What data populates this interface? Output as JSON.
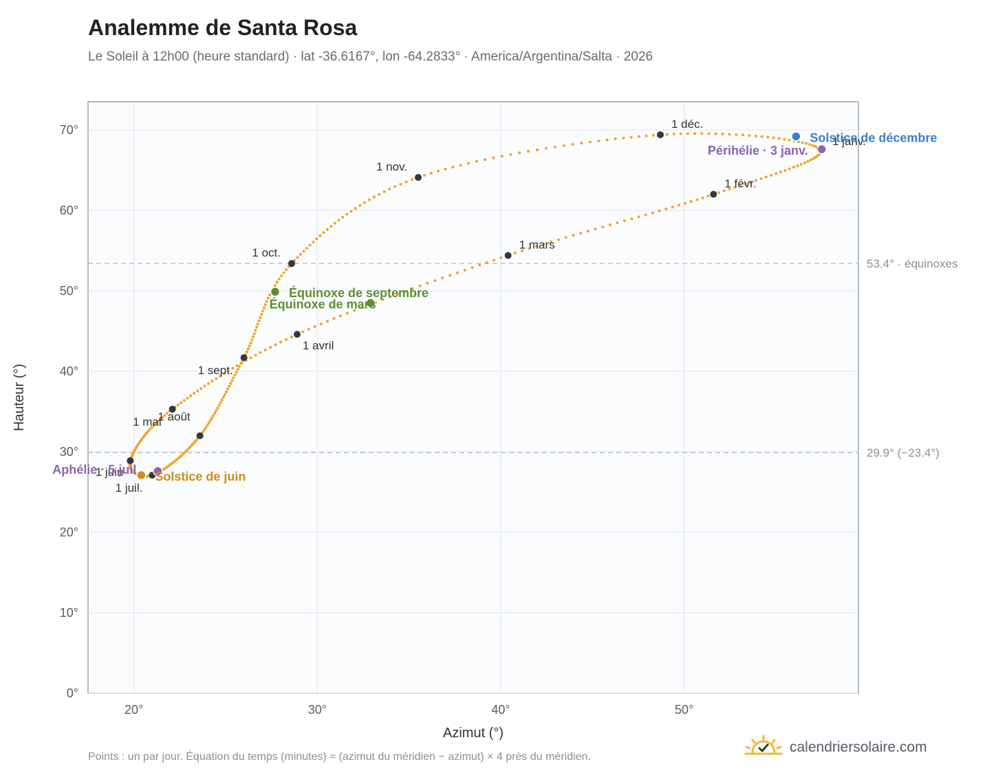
{
  "header": {
    "title": "Analemme de Santa Rosa",
    "subtitle": "Le Soleil à 12h00 (heure standard) · lat -36.6167°, lon -64.2833° · America/Argentina/Salta · 2026"
  },
  "footer": {
    "note": "Points : un par jour. Équation du temps (minutes) ≈ (azimut du méridien − azimut) × 4 près du méridien.",
    "brand": "calendriersolaire.com",
    "brand_icon": "sun-check-icon"
  },
  "chart_data": {
    "type": "scatter",
    "xlabel": "Azimut (°)",
    "ylabel": "Hauteur (°)",
    "xlim": [
      17.5,
      59.5
    ],
    "ylim": [
      0,
      73.5
    ],
    "xticks": [
      20,
      30,
      40,
      50
    ],
    "yticks": [
      0,
      10,
      20,
      30,
      40,
      50,
      60,
      70
    ],
    "tick_suffix": "°",
    "grid": true,
    "colors": {
      "curve": "#f2a427",
      "month_marker": "#333840",
      "equinox": "#5a8f33",
      "june_solstice": "#d18b1a",
      "december_solstice": "#3f7fc6",
      "apsis": "#8b63b3",
      "reference": "#b8c2cc"
    },
    "reference_lines": [
      {
        "y": 53.4,
        "label": "53.4° · équinoxes"
      },
      {
        "y": 29.9,
        "label": "29.9° (−23.4°)"
      }
    ],
    "month_markers": [
      {
        "label": "1 janv.",
        "x": 57.4,
        "y": 67.6
      },
      {
        "label": "1 févr.",
        "x": 51.6,
        "y": 62.0
      },
      {
        "label": "1 mars",
        "x": 40.4,
        "y": 54.4
      },
      {
        "label": "1 avril",
        "x": 28.9,
        "y": 44.6
      },
      {
        "label": "1 mai",
        "x": 22.1,
        "y": 35.3
      },
      {
        "label": "1 juin",
        "x": 19.8,
        "y": 28.9
      },
      {
        "label": "1 juil.",
        "x": 21.0,
        "y": 27.1
      },
      {
        "label": "1 août",
        "x": 23.6,
        "y": 32.0
      },
      {
        "label": "1 sept.",
        "x": 26.0,
        "y": 41.7
      },
      {
        "label": "1 oct.",
        "x": 28.6,
        "y": 53.4
      },
      {
        "label": "1 nov.",
        "x": 35.5,
        "y": 64.1
      },
      {
        "label": "1 déc.",
        "x": 48.7,
        "y": 69.4
      }
    ],
    "events": [
      {
        "label": "Solstice de décembre",
        "x": 56.1,
        "y": 69.2,
        "kind": "december_solstice"
      },
      {
        "label": "Périhélie · 3 janv.",
        "x": 57.5,
        "y": 67.6,
        "kind": "apsis"
      },
      {
        "label": "Équinoxe de septembre",
        "x": 27.7,
        "y": 49.9,
        "kind": "equinox"
      },
      {
        "label": "Équinoxe de mars",
        "x": 32.9,
        "y": 48.5,
        "kind": "equinox"
      },
      {
        "label": "Aphélie · 5 juil.",
        "x": 21.3,
        "y": 27.6,
        "kind": "apsis"
      },
      {
        "label": "Solstice de juin",
        "x": 20.4,
        "y": 27.1,
        "kind": "june_solstice"
      }
    ]
  }
}
